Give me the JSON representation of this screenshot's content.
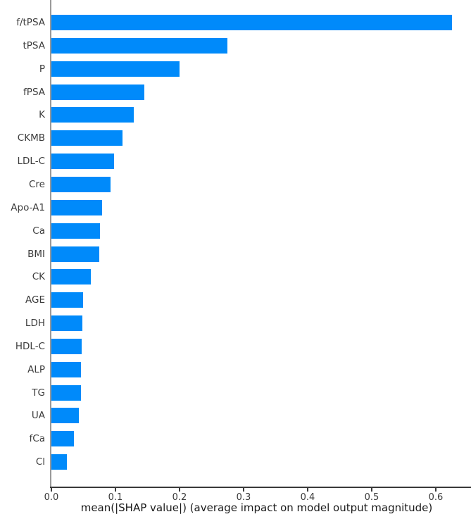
{
  "chart_data": {
    "type": "bar",
    "orientation": "horizontal",
    "title": "",
    "xlabel": "mean(|SHAP value|) (average impact on model output magnitude)",
    "ylabel": "",
    "categories": [
      "f/tPSA",
      "tPSA",
      "P",
      "fPSA",
      "K",
      "CKMB",
      "LDL-C",
      "Cre",
      "Apo-A1",
      "Ca",
      "BMI",
      "CK",
      "AGE",
      "LDH",
      "HDL-C",
      "ALP",
      "TG",
      "UA",
      "fCa",
      "Cl"
    ],
    "values": [
      0.625,
      0.275,
      0.2,
      0.145,
      0.129,
      0.111,
      0.098,
      0.092,
      0.079,
      0.076,
      0.075,
      0.062,
      0.049,
      0.048,
      0.047,
      0.046,
      0.046,
      0.043,
      0.035,
      0.024
    ],
    "xticks": [
      0.0,
      0.1,
      0.2,
      0.3,
      0.4,
      0.5,
      0.6
    ],
    "xtick_labels": [
      "0.0",
      "0.1",
      "0.2",
      "0.3",
      "0.4",
      "0.5",
      "0.6"
    ],
    "xlim": [
      0.0,
      0.655
    ],
    "grid": false,
    "legend": null,
    "colors": {
      "bar": "#008AFA",
      "left_spine": "#9a9a9a",
      "bottom_spine": "#3a3a3a",
      "tick_label": "#3a3a3a",
      "category_label": "#3c3c3c",
      "axis_label": "#1a1a1a",
      "background": "#ffffff"
    }
  }
}
